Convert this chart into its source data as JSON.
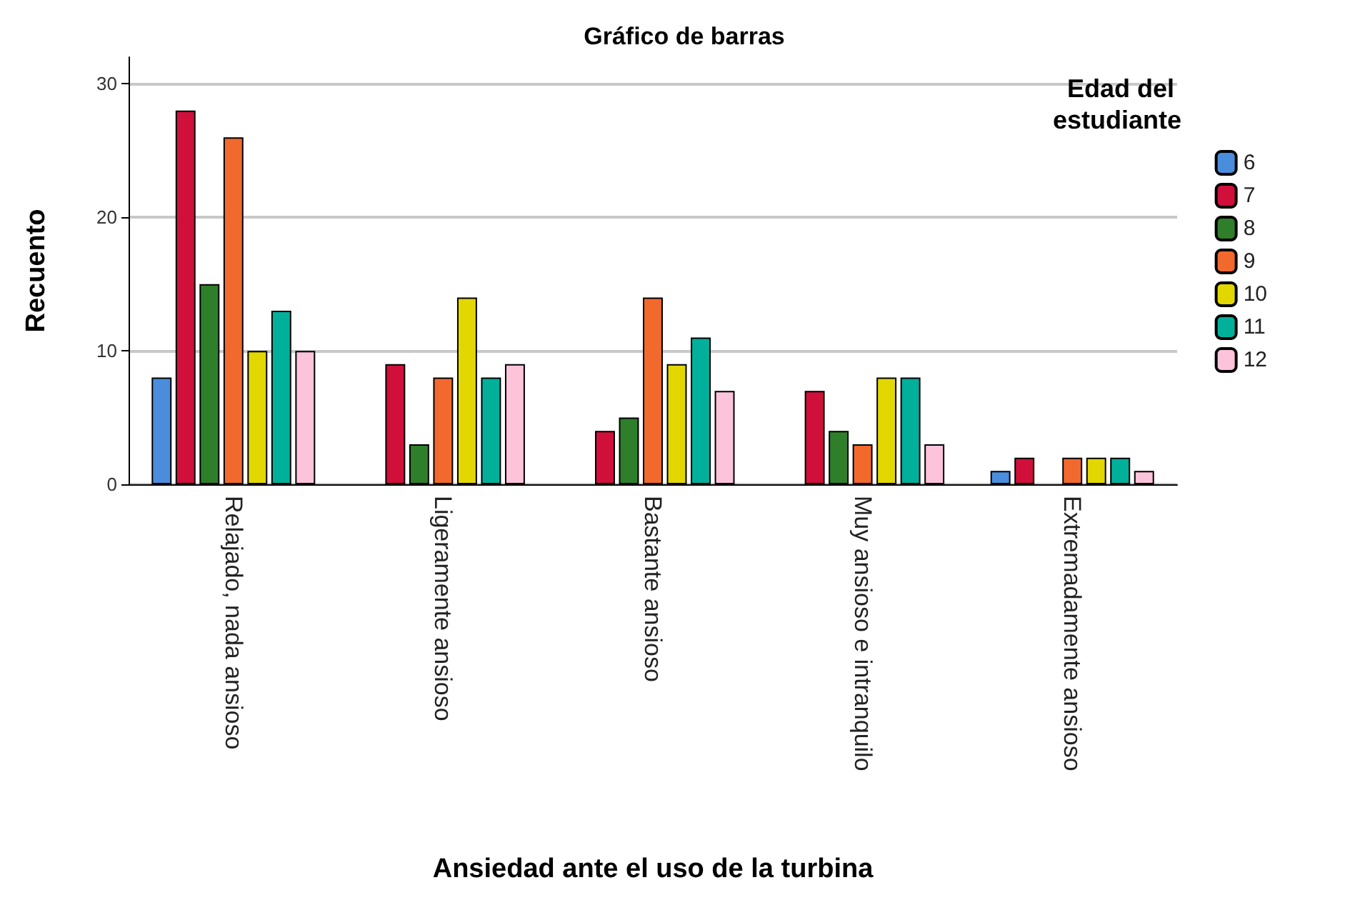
{
  "chart_data": {
    "type": "bar",
    "title": "Gráfico de barras",
    "xlabel": "Ansiedad ante el uso de la turbina",
    "ylabel": "Recuento",
    "legend_title": "Edad del estudiante",
    "categories": [
      "Relajado, nada ansioso",
      "Ligeramente ansioso",
      "Bastante ansioso",
      "Muy ansioso e intranquilo",
      "Extremadamente ansioso"
    ],
    "series": [
      {
        "name": "6",
        "color": "#4a8ddc",
        "values": [
          8,
          null,
          null,
          null,
          1
        ]
      },
      {
        "name": "7",
        "color": "#d0103a",
        "values": [
          28,
          9,
          4,
          7,
          2
        ]
      },
      {
        "name": "8",
        "color": "#2f7f2a",
        "values": [
          15,
          3,
          5,
          4,
          null
        ]
      },
      {
        "name": "9",
        "color": "#f2692e",
        "values": [
          26,
          8,
          14,
          3,
          2
        ]
      },
      {
        "name": "10",
        "color": "#e3d700",
        "values": [
          10,
          14,
          9,
          8,
          2
        ]
      },
      {
        "name": "11",
        "color": "#00b09b",
        "values": [
          13,
          8,
          11,
          8,
          2
        ]
      },
      {
        "name": "12",
        "color": "#fcc3db",
        "values": [
          10,
          9,
          7,
          3,
          1
        ]
      }
    ],
    "ylim": [
      0,
      32
    ],
    "yticks": [
      0,
      10,
      20,
      30
    ],
    "grid": "y",
    "legend": "top right"
  }
}
